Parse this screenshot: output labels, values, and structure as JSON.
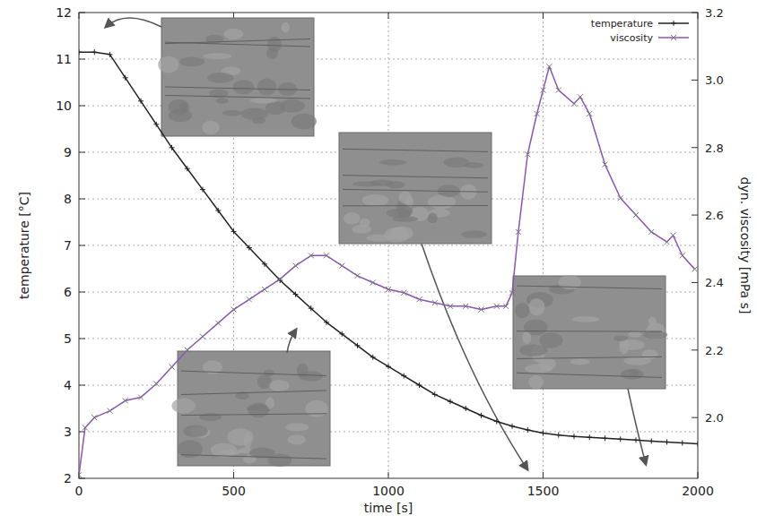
{
  "chart_data": {
    "type": "line",
    "x_label": "time [s]",
    "y_label": "temperature [°C]",
    "y2_label": "dyn. viscosity [mPa s]",
    "xlim": [
      0,
      2000
    ],
    "xticks": [
      0,
      500,
      1000,
      1500,
      2000
    ],
    "ylim": [
      2,
      12
    ],
    "yticks": [
      2,
      3,
      4,
      5,
      6,
      7,
      8,
      9,
      10,
      11,
      12
    ],
    "y2lim": [
      1.82,
      3.2
    ],
    "y2ticks": [
      {
        "value": 2,
        "label": "2.0"
      },
      2.2,
      2.4,
      2.6,
      2.8,
      {
        "value": 3,
        "label": "3.0"
      },
      3.2
    ],
    "grid": true,
    "legend": "upper right",
    "series": [
      {
        "name": "temperature",
        "color": "#222222",
        "marker": "plus",
        "line_style": "solid",
        "x": [
          0,
          50,
          100,
          150,
          200,
          250,
          300,
          350,
          400,
          450,
          500,
          550,
          600,
          650,
          700,
          750,
          800,
          850,
          900,
          950,
          1000,
          1050,
          1100,
          1150,
          1200,
          1250,
          1300,
          1350,
          1400,
          1450,
          1500,
          1550,
          1600,
          1650,
          1700,
          1750,
          1800,
          1850,
          1900,
          1950,
          2000
        ],
        "values": [
          11.15,
          11.15,
          11.1,
          10.6,
          10.1,
          9.6,
          9.1,
          8.65,
          8.2,
          7.75,
          7.3,
          6.95,
          6.6,
          6.25,
          5.95,
          5.65,
          5.35,
          5.1,
          4.85,
          4.6,
          4.4,
          4.2,
          4.0,
          3.8,
          3.65,
          3.5,
          3.35,
          3.22,
          3.12,
          3.04,
          2.97,
          2.93,
          2.9,
          2.88,
          2.86,
          2.84,
          2.82,
          2.8,
          2.78,
          2.76,
          2.74
        ]
      },
      {
        "name": "viscosity",
        "color": "#8a55b8",
        "marker": "cross",
        "line_style": "solid",
        "axis": "y2",
        "x": [
          0,
          20,
          50,
          100,
          150,
          200,
          250,
          300,
          350,
          400,
          450,
          500,
          550,
          600,
          650,
          700,
          750,
          800,
          850,
          900,
          950,
          1000,
          1050,
          1100,
          1150,
          1200,
          1250,
          1300,
          1350,
          1380,
          1400,
          1420,
          1450,
          1480,
          1500,
          1520,
          1550,
          1600,
          1620,
          1650,
          1700,
          1750,
          1800,
          1850,
          1900,
          1920,
          1950,
          1990
        ],
        "values": [
          1.83,
          1.97,
          2.0,
          2.02,
          2.05,
          2.06,
          2.1,
          2.15,
          2.2,
          2.24,
          2.28,
          2.32,
          2.35,
          2.38,
          2.41,
          2.45,
          2.48,
          2.48,
          2.45,
          2.42,
          2.4,
          2.38,
          2.37,
          2.35,
          2.34,
          2.33,
          2.33,
          2.32,
          2.33,
          2.33,
          2.37,
          2.55,
          2.78,
          2.9,
          2.97,
          3.04,
          2.97,
          2.93,
          2.95,
          2.9,
          2.75,
          2.65,
          2.6,
          2.55,
          2.52,
          2.54,
          2.48,
          2.44
        ]
      }
    ]
  }
}
